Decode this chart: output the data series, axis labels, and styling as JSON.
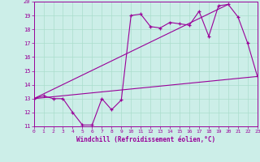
{
  "xlabel": "Windchill (Refroidissement éolien,°C)",
  "xlim": [
    0,
    23
  ],
  "ylim": [
    11,
    20
  ],
  "xticks": [
    0,
    1,
    2,
    3,
    4,
    5,
    6,
    7,
    8,
    9,
    10,
    11,
    12,
    13,
    14,
    15,
    16,
    17,
    18,
    19,
    20,
    21,
    22,
    23
  ],
  "yticks": [
    11,
    12,
    13,
    14,
    15,
    16,
    17,
    18,
    19,
    20
  ],
  "bg_color": "#cceee8",
  "line_color": "#990099",
  "grid_color": "#aaddcc",
  "series_main_x": [
    0,
    1,
    2,
    3,
    4,
    5,
    6,
    7,
    8,
    9,
    10,
    11,
    12,
    13,
    14,
    15,
    16,
    17,
    18,
    19,
    20,
    21,
    22,
    23
  ],
  "series_main_y": [
    13.0,
    13.2,
    13.0,
    13.0,
    12.0,
    11.1,
    11.1,
    13.0,
    12.2,
    12.9,
    19.0,
    19.1,
    18.2,
    18.1,
    18.5,
    18.4,
    18.3,
    19.3,
    17.5,
    19.7,
    19.8,
    18.9,
    17.0,
    14.6
  ],
  "series_line1_x": [
    0,
    23
  ],
  "series_line1_y": [
    13.0,
    14.6
  ],
  "series_line2_x": [
    0,
    20
  ],
  "series_line2_y": [
    13.0,
    19.8
  ]
}
